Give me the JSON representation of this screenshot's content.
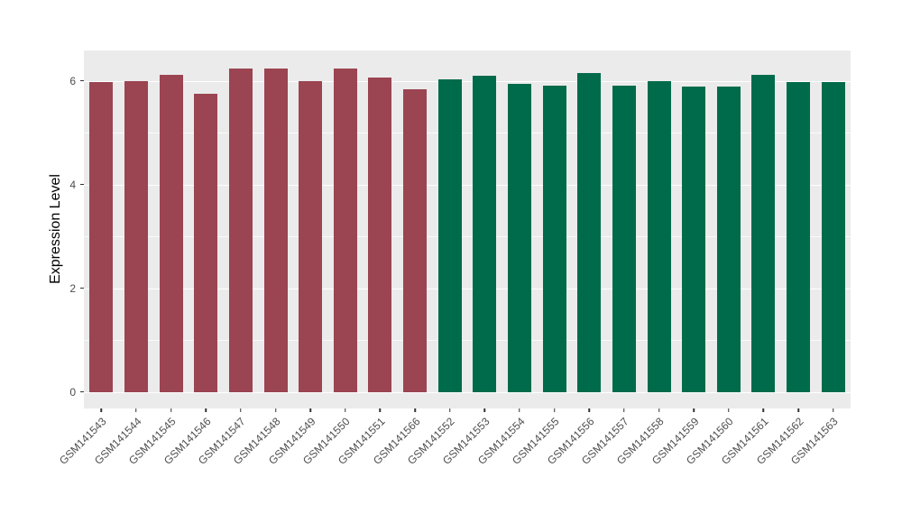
{
  "chart_data": {
    "type": "bar",
    "title": "",
    "xlabel": "",
    "ylabel": "Expression Level",
    "ylim": [
      0,
      6.57
    ],
    "yticks": [
      0,
      2,
      4,
      6
    ],
    "minor_yticks": [
      1,
      3,
      5
    ],
    "grid": true,
    "legend_position": "none",
    "categories": [
      "GSM141543",
      "GSM141544",
      "GSM141545",
      "GSM141546",
      "GSM141547",
      "GSM141548",
      "GSM141549",
      "GSM141550",
      "GSM141551",
      "GSM141566",
      "GSM141552",
      "GSM141553",
      "GSM141554",
      "GSM141555",
      "GSM141556",
      "GSM141557",
      "GSM141558",
      "GSM141559",
      "GSM141560",
      "GSM141561",
      "GSM141562",
      "GSM141563"
    ],
    "values": [
      5.98,
      6.0,
      6.11,
      5.74,
      6.24,
      6.24,
      5.99,
      6.24,
      6.06,
      5.84,
      6.03,
      6.09,
      5.94,
      5.91,
      6.15,
      5.91,
      6.0,
      5.89,
      5.88,
      6.12,
      5.98,
      5.97
    ],
    "bar_colors": [
      "#9B4452",
      "#9B4452",
      "#9B4452",
      "#9B4452",
      "#9B4452",
      "#9B4452",
      "#9B4452",
      "#9B4452",
      "#9B4452",
      "#9B4452",
      "#006B4B",
      "#006B4B",
      "#006B4B",
      "#006B4B",
      "#006B4B",
      "#006B4B",
      "#006B4B",
      "#006B4B",
      "#006B4B",
      "#006B4B",
      "#006B4B",
      "#006B4B"
    ],
    "groups": [
      {
        "name": "group-red",
        "color": "#9B4452",
        "samples": [
          "GSM141543",
          "GSM141544",
          "GSM141545",
          "GSM141546",
          "GSM141547",
          "GSM141548",
          "GSM141549",
          "GSM141550",
          "GSM141551",
          "GSM141566"
        ]
      },
      {
        "name": "group-green",
        "color": "#006B4B",
        "samples": [
          "GSM141552",
          "GSM141553",
          "GSM141554",
          "GSM141555",
          "GSM141556",
          "GSM141557",
          "GSM141558",
          "GSM141559",
          "GSM141560",
          "GSM141561",
          "GSM141562",
          "GSM141563"
        ]
      }
    ],
    "colors": {
      "panel_background": "#EBEBEB",
      "gridline": "#FFFFFF",
      "tick_text": "#4D4D4D",
      "axis_title_text": "#000000",
      "figure_background": "#FFFFFF"
    }
  }
}
